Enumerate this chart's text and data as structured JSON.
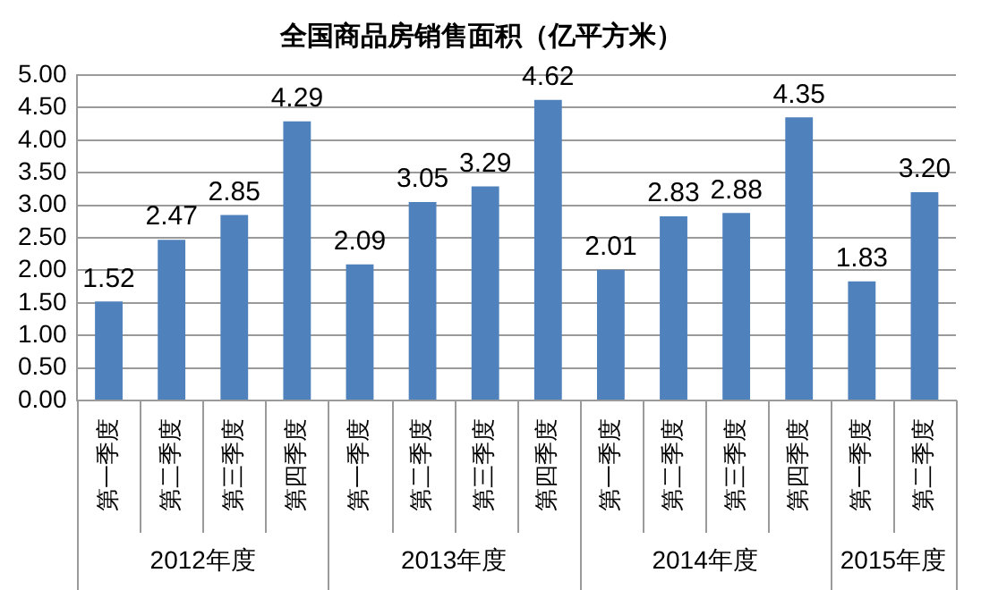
{
  "chart_data": {
    "type": "bar",
    "title": "全国商品房销售面积（亿平方米）",
    "categories": [
      "第一季度",
      "第二季度",
      "第三季度",
      "第四季度",
      "第一季度",
      "第二季度",
      "第三季度",
      "第四季度",
      "第一季度",
      "第二季度",
      "第三季度",
      "第四季度",
      "第一季度",
      "第二季度"
    ],
    "values": [
      1.52,
      2.47,
      2.85,
      4.29,
      2.09,
      3.05,
      3.29,
      4.62,
      2.01,
      2.83,
      2.88,
      4.35,
      1.83,
      3.2
    ],
    "value_labels": [
      "1.52",
      "2.47",
      "2.85",
      "4.29",
      "2.09",
      "3.05",
      "3.29",
      "4.62",
      "2.01",
      "2.83",
      "2.88",
      "4.35",
      "1.83",
      "3.20"
    ],
    "color": "#4f81bd",
    "ylim": [
      0,
      5
    ],
    "yticks": [
      {
        "value": 0,
        "label": "0.00"
      },
      {
        "value": 0.5,
        "label": "0.50"
      },
      {
        "value": 1,
        "label": "1.00"
      },
      {
        "value": 1.5,
        "label": "1.50"
      },
      {
        "value": 2,
        "label": "2.00"
      },
      {
        "value": 2.5,
        "label": "2.50"
      },
      {
        "value": 3,
        "label": "3.00"
      },
      {
        "value": 3.5,
        "label": "3.50"
      },
      {
        "value": 4,
        "label": "4.00"
      },
      {
        "value": 4.5,
        "label": "4.50"
      },
      {
        "value": 5,
        "label": "5.00"
      }
    ],
    "grid": "y",
    "annotations": [
      "2012年度",
      "2013年度",
      "2014年度",
      "2015年度"
    ]
  }
}
